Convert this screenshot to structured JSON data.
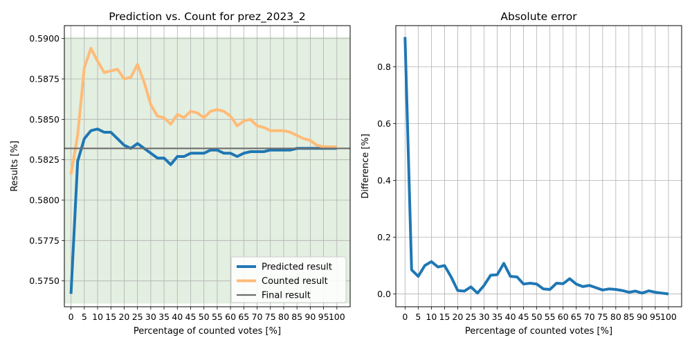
{
  "chart_data": [
    {
      "type": "line",
      "title": "Prediction vs. Count for prez_2023_2",
      "xlabel": "Percentage of counted votes [%]",
      "ylabel": "Results [%]",
      "xlim": [
        -2.5,
        105
      ],
      "ylim": [
        0.5734,
        0.5908
      ],
      "xticks": [
        0,
        5,
        10,
        15,
        20,
        25,
        30,
        35,
        40,
        45,
        50,
        55,
        60,
        65,
        70,
        75,
        80,
        85,
        90,
        95,
        100
      ],
      "yticks": [
        0.575,
        0.5775,
        0.58,
        0.5825,
        0.585,
        0.5875,
        0.59
      ],
      "ytick_labels": [
        "0.5750",
        "0.5775",
        "0.5800",
        "0.5825",
        "0.5850",
        "0.5875",
        "0.5900"
      ],
      "grid": true,
      "shaded_band": {
        "y": [
          0.5736,
          0.5901
        ],
        "color": "#e3efe0"
      },
      "legend_position": "lower-right",
      "series": [
        {
          "name": "Predicted result",
          "color": "#1f77b4",
          "x": [
            0,
            2.5,
            5,
            7.5,
            10,
            12.5,
            15,
            17.5,
            20,
            22.5,
            25,
            27.5,
            30,
            32.5,
            35,
            37.5,
            40,
            42.5,
            45,
            47.5,
            50,
            52.5,
            55,
            57.5,
            60,
            62.5,
            65,
            67.5,
            70,
            72.5,
            75,
            77.5,
            80,
            82.5,
            85,
            87.5,
            90,
            92.5,
            95,
            97.5,
            100
          ],
          "y": [
            0.5742,
            0.5824,
            0.5838,
            0.5843,
            0.5844,
            0.5842,
            0.5842,
            0.5838,
            0.5834,
            0.5832,
            0.5835,
            0.5832,
            0.5829,
            0.5826,
            0.5826,
            0.5822,
            0.5827,
            0.5827,
            0.5829,
            0.5829,
            0.5829,
            0.5831,
            0.5831,
            0.5829,
            0.5829,
            0.5827,
            0.5829,
            0.583,
            0.583,
            0.583,
            0.5831,
            0.5831,
            0.5831,
            0.5831,
            0.5832,
            0.5832,
            0.5832,
            0.5832,
            0.5832,
            0.5832,
            0.5832
          ]
        },
        {
          "name": "Counted result",
          "color": "#ffbb78",
          "x": [
            0,
            2.5,
            5,
            7.5,
            10,
            12.5,
            15,
            17.5,
            20,
            22.5,
            25,
            27.5,
            30,
            32.5,
            35,
            37.5,
            40,
            42.5,
            45,
            47.5,
            50,
            52.5,
            55,
            57.5,
            60,
            62.5,
            65,
            67.5,
            70,
            72.5,
            75,
            77.5,
            80,
            82.5,
            85,
            87.5,
            90,
            92.5,
            95,
            97.5,
            100
          ],
          "y": [
            0.5816,
            0.584,
            0.5882,
            0.5894,
            0.5886,
            0.5879,
            0.588,
            0.5881,
            0.5875,
            0.5876,
            0.5884,
            0.5873,
            0.5859,
            0.5852,
            0.5851,
            0.5847,
            0.5853,
            0.5851,
            0.5855,
            0.5854,
            0.5851,
            0.5855,
            0.5856,
            0.5855,
            0.5852,
            0.5846,
            0.5849,
            0.585,
            0.5846,
            0.5845,
            0.5843,
            0.5843,
            0.5843,
            0.5842,
            0.584,
            0.5838,
            0.5837,
            0.5834,
            0.5833,
            0.5833,
            0.5833
          ]
        },
        {
          "name": "Final result",
          "color": "#6e6e6e",
          "type": "hline",
          "y": 0.5832
        }
      ]
    },
    {
      "type": "line",
      "title": "Absolute error",
      "xlabel": "Percentage of counted votes [%]",
      "ylabel": "Difference [%]",
      "xlim": [
        -3.5,
        105
      ],
      "ylim": [
        -0.045,
        0.945
      ],
      "xticks": [
        0,
        5,
        10,
        15,
        20,
        25,
        30,
        35,
        40,
        45,
        50,
        55,
        60,
        65,
        70,
        75,
        80,
        85,
        90,
        95,
        100
      ],
      "yticks": [
        0.0,
        0.2,
        0.4,
        0.6,
        0.8
      ],
      "ytick_labels": [
        "0.0",
        "0.2",
        "0.4",
        "0.6",
        "0.8"
      ],
      "grid": true,
      "series": [
        {
          "color": "#1f77b4",
          "x": [
            0,
            2.5,
            5,
            7.5,
            10,
            12.5,
            15,
            17.5,
            20,
            22.5,
            25,
            27.5,
            30,
            32.5,
            35,
            37.5,
            40,
            42.5,
            45,
            47.5,
            50,
            52.5,
            55,
            57.5,
            60,
            62.5,
            65,
            67.5,
            70,
            72.5,
            75,
            77.5,
            80,
            82.5,
            85,
            87.5,
            90,
            92.5,
            95,
            97.5,
            100
          ],
          "y": [
            0.905,
            0.085,
            0.062,
            0.1,
            0.114,
            0.095,
            0.1,
            0.06,
            0.012,
            0.01,
            0.025,
            0.003,
            0.03,
            0.066,
            0.068,
            0.108,
            0.062,
            0.06,
            0.035,
            0.038,
            0.035,
            0.018,
            0.016,
            0.038,
            0.036,
            0.054,
            0.035,
            0.026,
            0.03,
            0.022,
            0.014,
            0.018,
            0.016,
            0.012,
            0.006,
            0.01,
            0.003,
            0.011,
            0.006,
            0.003,
            0.0
          ]
        }
      ]
    }
  ]
}
